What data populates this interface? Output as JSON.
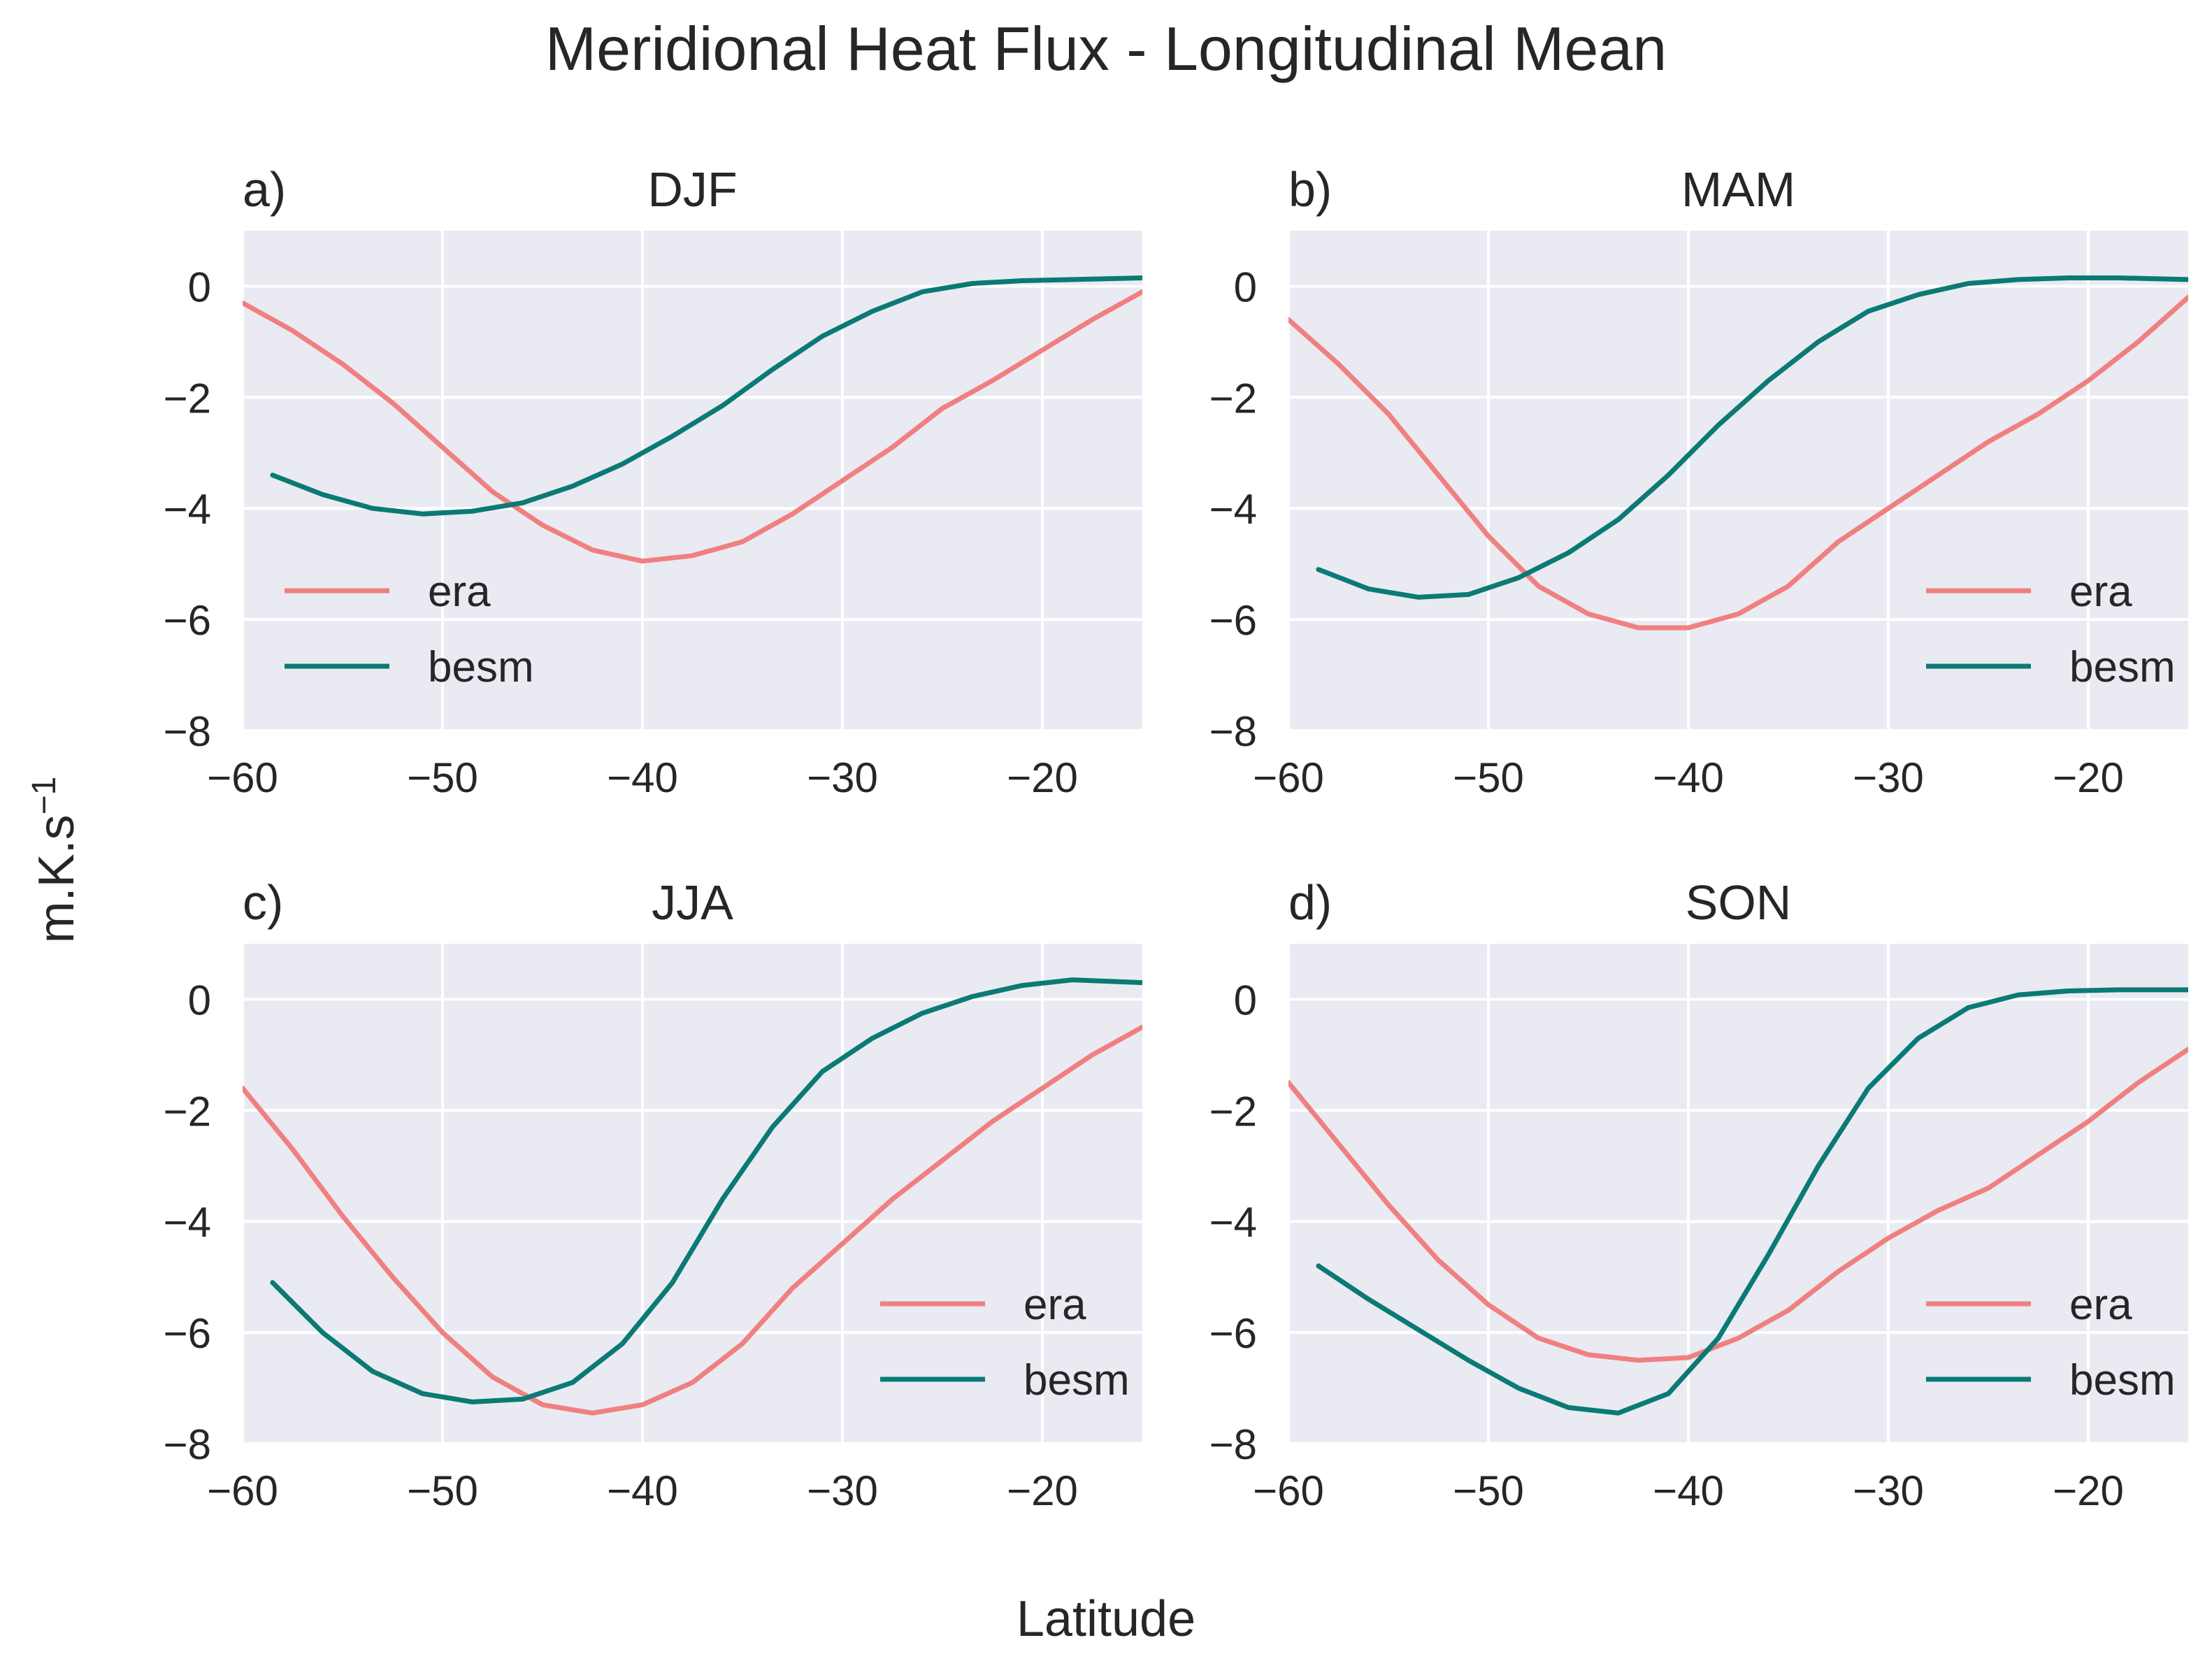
{
  "figure": {
    "title": "Meridional Heat Flux - Longitudinal Mean",
    "xlabel": "Latitude",
    "ylabel_base": "m.K.s",
    "ylabel_sup": "−1"
  },
  "colors": {
    "era": "#f08080",
    "besm": "#0b7a75",
    "panel_bg": "#eaeaf2",
    "grid": "#ffffff"
  },
  "chart_data": [
    {
      "type": "line",
      "label": "a)",
      "title": "DJF",
      "xlim": [
        -60,
        -15
      ],
      "ylim": [
        -8,
        1
      ],
      "xticks": [
        -60,
        -50,
        -40,
        -30,
        -20
      ],
      "yticks": [
        0,
        -2,
        -4,
        -6,
        -8
      ],
      "tick_labels_x": [
        "−60",
        "−50",
        "−40",
        "−30",
        "−20"
      ],
      "tick_labels_y": [
        "0",
        "−2",
        "−4",
        "−6",
        "−8"
      ],
      "legend": "lower-left",
      "series": [
        {
          "name": "era",
          "x": [
            -60,
            -57.5,
            -55,
            -52.5,
            -50,
            -47.5,
            -45,
            -42.5,
            -40,
            -37.5,
            -35,
            -32.5,
            -30,
            -27.5,
            -25,
            -22.5,
            -20,
            -17.5,
            -15
          ],
          "y": [
            -0.3,
            -0.8,
            -1.4,
            -2.1,
            -2.9,
            -3.7,
            -4.3,
            -4.75,
            -4.95,
            -4.85,
            -4.6,
            -4.1,
            -3.5,
            -2.9,
            -2.2,
            -1.7,
            -1.15,
            -0.6,
            -0.1
          ]
        },
        {
          "name": "besm",
          "x": [
            -58.5,
            -56,
            -53.5,
            -51,
            -48.5,
            -46,
            -43.5,
            -41,
            -38.5,
            -36,
            -33.5,
            -31,
            -28.5,
            -26,
            -23.5,
            -21,
            -18.5,
            -15
          ],
          "y": [
            -3.4,
            -3.75,
            -4.0,
            -4.1,
            -4.05,
            -3.9,
            -3.6,
            -3.2,
            -2.7,
            -2.15,
            -1.5,
            -0.9,
            -0.45,
            -0.1,
            0.05,
            0.1,
            0.12,
            0.15
          ]
        }
      ]
    },
    {
      "type": "line",
      "label": "b)",
      "title": "MAM",
      "xlim": [
        -60,
        -15
      ],
      "ylim": [
        -8,
        1
      ],
      "xticks": [
        -60,
        -50,
        -40,
        -30,
        -20
      ],
      "yticks": [
        0,
        -2,
        -4,
        -6,
        -8
      ],
      "tick_labels_x": [
        "−60",
        "−50",
        "−40",
        "−30",
        "−20"
      ],
      "tick_labels_y": [
        "0",
        "−2",
        "−4",
        "−6",
        "−8"
      ],
      "legend": "lower-right",
      "series": [
        {
          "name": "era",
          "x": [
            -60,
            -57.5,
            -55,
            -52.5,
            -50,
            -47.5,
            -45,
            -42.5,
            -40,
            -37.5,
            -35,
            -32.5,
            -30,
            -27.5,
            -25,
            -22.5,
            -20,
            -17.5,
            -15
          ],
          "y": [
            -0.6,
            -1.4,
            -2.3,
            -3.4,
            -4.5,
            -5.4,
            -5.9,
            -6.15,
            -6.15,
            -5.9,
            -5.4,
            -4.6,
            -4.0,
            -3.4,
            -2.8,
            -2.3,
            -1.7,
            -1.0,
            -0.2
          ]
        },
        {
          "name": "besm",
          "x": [
            -58.5,
            -56,
            -53.5,
            -51,
            -48.5,
            -46,
            -43.5,
            -41,
            -38.5,
            -36,
            -33.5,
            -31,
            -28.5,
            -26,
            -23.5,
            -21,
            -18.5,
            -15
          ],
          "y": [
            -5.1,
            -5.45,
            -5.6,
            -5.55,
            -5.25,
            -4.8,
            -4.2,
            -3.4,
            -2.5,
            -1.7,
            -1.0,
            -0.45,
            -0.15,
            0.05,
            0.12,
            0.15,
            0.15,
            0.12
          ]
        }
      ]
    },
    {
      "type": "line",
      "label": "c)",
      "title": "JJA",
      "xlim": [
        -60,
        -15
      ],
      "ylim": [
        -8,
        1
      ],
      "xticks": [
        -60,
        -50,
        -40,
        -30,
        -20
      ],
      "yticks": [
        0,
        -2,
        -4,
        -6,
        -8
      ],
      "tick_labels_x": [
        "−60",
        "−50",
        "−40",
        "−30",
        "−20"
      ],
      "tick_labels_y": [
        "0",
        "−2",
        "−4",
        "−6",
        "−8"
      ],
      "legend": "lower-right",
      "series": [
        {
          "name": "era",
          "x": [
            -60,
            -57.5,
            -55,
            -52.5,
            -50,
            -47.5,
            -45,
            -42.5,
            -40,
            -37.5,
            -35,
            -32.5,
            -30,
            -27.5,
            -25,
            -22.5,
            -20,
            -17.5,
            -15
          ],
          "y": [
            -1.6,
            -2.7,
            -3.9,
            -5.0,
            -6.0,
            -6.8,
            -7.3,
            -7.45,
            -7.3,
            -6.9,
            -6.2,
            -5.2,
            -4.4,
            -3.6,
            -2.9,
            -2.2,
            -1.6,
            -1.0,
            -0.5
          ]
        },
        {
          "name": "besm",
          "x": [
            -58.5,
            -56,
            -53.5,
            -51,
            -48.5,
            -46,
            -43.5,
            -41,
            -38.5,
            -36,
            -33.5,
            -31,
            -28.5,
            -26,
            -23.5,
            -21,
            -18.5,
            -15
          ],
          "y": [
            -5.1,
            -6.0,
            -6.7,
            -7.1,
            -7.25,
            -7.2,
            -6.9,
            -6.2,
            -5.1,
            -3.6,
            -2.3,
            -1.3,
            -0.7,
            -0.25,
            0.05,
            0.25,
            0.35,
            0.3
          ]
        }
      ]
    },
    {
      "type": "line",
      "label": "d)",
      "title": "SON",
      "xlim": [
        -60,
        -15
      ],
      "ylim": [
        -8,
        1
      ],
      "xticks": [
        -60,
        -50,
        -40,
        -30,
        -20
      ],
      "yticks": [
        0,
        -2,
        -4,
        -6,
        -8
      ],
      "tick_labels_x": [
        "−60",
        "−50",
        "−40",
        "−30",
        "−20"
      ],
      "tick_labels_y": [
        "0",
        "−2",
        "−4",
        "−6",
        "−8"
      ],
      "legend": "lower-right",
      "series": [
        {
          "name": "era",
          "x": [
            -60,
            -57.5,
            -55,
            -52.5,
            -50,
            -47.5,
            -45,
            -42.5,
            -40,
            -37.5,
            -35,
            -32.5,
            -30,
            -27.5,
            -25,
            -22.5,
            -20,
            -17.5,
            -15
          ],
          "y": [
            -1.5,
            -2.6,
            -3.7,
            -4.7,
            -5.5,
            -6.1,
            -6.4,
            -6.5,
            -6.45,
            -6.1,
            -5.6,
            -4.9,
            -4.3,
            -3.8,
            -3.4,
            -2.8,
            -2.2,
            -1.5,
            -0.9
          ]
        },
        {
          "name": "besm",
          "x": [
            -58.5,
            -56,
            -53.5,
            -51,
            -48.5,
            -46,
            -43.5,
            -41,
            -38.5,
            -36,
            -33.5,
            -31,
            -28.5,
            -26,
            -23.5,
            -21,
            -18.5,
            -15
          ],
          "y": [
            -4.8,
            -5.4,
            -5.95,
            -6.5,
            -7.0,
            -7.35,
            -7.45,
            -7.1,
            -6.1,
            -4.6,
            -3.0,
            -1.6,
            -0.7,
            -0.15,
            0.08,
            0.15,
            0.17,
            0.17
          ]
        }
      ]
    }
  ]
}
